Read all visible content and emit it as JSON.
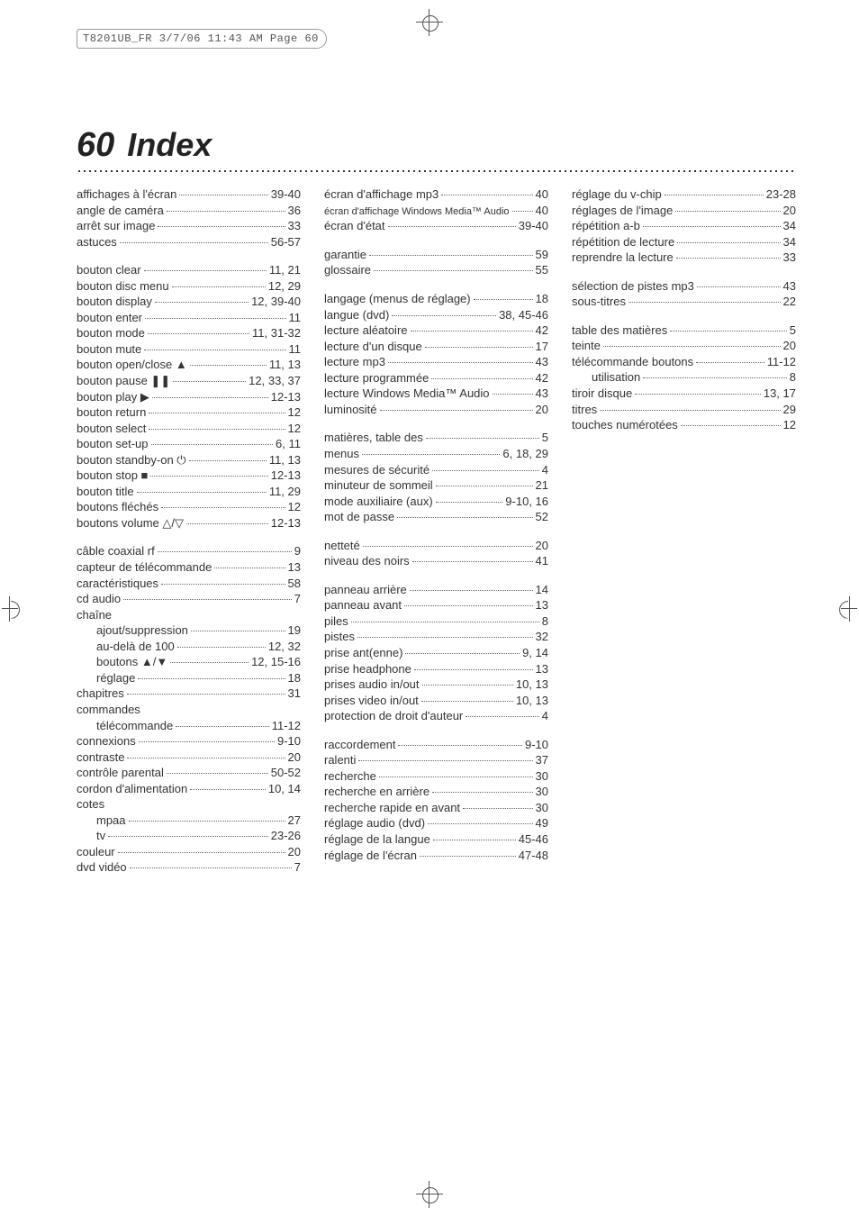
{
  "header_tag": "T8201UB_FR  3/7/06  11:43 AM  Page 60",
  "page_number": "60",
  "page_title": "Index",
  "columns": [
    [
      [
        {
          "t": "affichages à l'écran",
          "p": "39-40"
        },
        {
          "t": "angle de caméra",
          "p": "36"
        },
        {
          "t": "arrêt sur image",
          "p": "33"
        },
        {
          "t": "astuces",
          "p": "56-57"
        }
      ],
      [
        {
          "t": "bouton clear",
          "p": "11, 21"
        },
        {
          "t": "bouton disc menu",
          "p": "12, 29"
        },
        {
          "t": "bouton display",
          "p": "12, 39-40"
        },
        {
          "t": "bouton enter",
          "p": "11"
        },
        {
          "t": "bouton mode",
          "p": "11, 31-32"
        },
        {
          "t": "bouton mute",
          "p": "11"
        },
        {
          "t": "bouton open/close ▲",
          "p": "11, 13"
        },
        {
          "t": "bouton pause ❚❚",
          "p": "12, 33, 37"
        },
        {
          "t": "bouton play ▶",
          "p": "12-13"
        },
        {
          "t": "bouton return",
          "p": "12"
        },
        {
          "t": "bouton select",
          "p": "12"
        },
        {
          "t": "bouton set-up",
          "p": "6, 11"
        },
        {
          "t": "bouton standby-on ⏻",
          "p": "11, 13"
        },
        {
          "t": "bouton stop ■",
          "p": "12-13"
        },
        {
          "t": "bouton title",
          "p": "11, 29"
        },
        {
          "t": "boutons fléchés",
          "p": "12"
        },
        {
          "t": "boutons volume △/▽",
          "p": "12-13"
        }
      ],
      [
        {
          "t": "câble coaxial rf",
          "p": "9"
        },
        {
          "t": "capteur de télécommande",
          "p": "13"
        },
        {
          "t": "caractéristiques",
          "p": "58"
        },
        {
          "t": "cd audio",
          "p": "7"
        },
        {
          "t": "chaîne",
          "naked": true
        },
        {
          "t": "ajout/suppression",
          "p": "19",
          "indent": true
        },
        {
          "t": "au-delà de 100",
          "p": "12, 32",
          "indent": true
        },
        {
          "t": "boutons ▲/▼",
          "p": "12, 15-16",
          "indent": true
        },
        {
          "t": "réglage",
          "p": "18",
          "indent": true
        },
        {
          "t": "chapitres",
          "p": "31"
        },
        {
          "t": "commandes",
          "naked": true
        },
        {
          "t": "télécommande",
          "p": "11-12",
          "indent": true
        },
        {
          "t": "connexions",
          "p": "9-10"
        },
        {
          "t": "contraste",
          "p": "20"
        },
        {
          "t": "contrôle parental",
          "p": "50-52"
        },
        {
          "t": "cordon d'alimentation",
          "p": "10, 14"
        },
        {
          "t": "cotes",
          "naked": true
        },
        {
          "t": "mpaa",
          "p": "27",
          "indent": true
        },
        {
          "t": "tv",
          "p": "23-26",
          "indent": true
        },
        {
          "t": "couleur",
          "p": "20"
        },
        {
          "t": "dvd vidéo",
          "p": "7"
        }
      ]
    ],
    [
      [
        {
          "t": "écran d'affichage mp3",
          "p": "40"
        },
        {
          "t": "écran d'affichage Windows Media™ Audio",
          "p": "40",
          "small": true
        },
        {
          "t": "écran d'état",
          "p": "39-40"
        }
      ],
      [
        {
          "t": "garantie",
          "p": "59"
        },
        {
          "t": "glossaire",
          "p": "55"
        }
      ],
      [
        {
          "t": "langage (menus de réglage)",
          "p": "18"
        },
        {
          "t": "langue (dvd)",
          "p": "38, 45-46"
        },
        {
          "t": "lecture aléatoire",
          "p": "42"
        },
        {
          "t": "lecture d'un disque",
          "p": "17"
        },
        {
          "t": "lecture mp3",
          "p": "43"
        },
        {
          "t": "lecture programmée",
          "p": "42"
        },
        {
          "t": "lecture Windows Media™ Audio",
          "p": "43"
        },
        {
          "t": "luminosité",
          "p": "20"
        }
      ],
      [
        {
          "t": "matières, table des",
          "p": "5"
        },
        {
          "t": "menus",
          "p": "6, 18, 29"
        },
        {
          "t": "mesures de sécurité",
          "p": "4"
        },
        {
          "t": "minuteur de sommeil",
          "p": "21"
        },
        {
          "t": "mode auxiliaire (aux)",
          "p": "9-10, 16"
        },
        {
          "t": "mot de passe",
          "p": "52"
        }
      ],
      [
        {
          "t": "netteté",
          "p": "20"
        },
        {
          "t": "niveau des noirs",
          "p": "41"
        }
      ],
      [
        {
          "t": "panneau arrière",
          "p": "14"
        },
        {
          "t": "panneau avant",
          "p": "13"
        },
        {
          "t": "piles",
          "p": "8"
        },
        {
          "t": "pistes",
          "p": "32"
        },
        {
          "t": "prise ant(enne)",
          "p": "9, 14"
        },
        {
          "t": "prise headphone",
          "p": "13"
        },
        {
          "t": "prises audio in/out",
          "p": "10, 13"
        },
        {
          "t": "prises video in/out",
          "p": "10, 13"
        },
        {
          "t": "protection de droit d'auteur",
          "p": "4"
        }
      ],
      [
        {
          "t": "raccordement",
          "p": "9-10"
        },
        {
          "t": "ralenti",
          "p": "37"
        },
        {
          "t": "recherche",
          "p": "30"
        },
        {
          "t": "recherche en arrière",
          "p": "30"
        },
        {
          "t": "recherche rapide en avant",
          "p": "30"
        },
        {
          "t": "réglage audio (dvd)",
          "p": "49"
        },
        {
          "t": "réglage de la langue",
          "p": "45-46"
        },
        {
          "t": "réglage de l'écran",
          "p": "47-48"
        }
      ]
    ],
    [
      [
        {
          "t": "réglage du v-chip",
          "p": "23-28"
        },
        {
          "t": "réglages de l'image",
          "p": "20"
        },
        {
          "t": "répétition a-b",
          "p": "34"
        },
        {
          "t": "répétition de lecture",
          "p": "34"
        },
        {
          "t": "reprendre la lecture",
          "p": "33"
        }
      ],
      [
        {
          "t": "sélection de pistes mp3",
          "p": "43"
        },
        {
          "t": "sous-titres",
          "p": "22"
        }
      ],
      [
        {
          "t": "table des matières",
          "p": "5"
        },
        {
          "t": "teinte",
          "p": "20"
        },
        {
          "t": "télécommande boutons",
          "p": "11-12"
        },
        {
          "t": "utilisation",
          "p": "8",
          "indent": true
        },
        {
          "t": "tiroir disque",
          "p": "13, 17"
        },
        {
          "t": "titres",
          "p": "29"
        },
        {
          "t": "touches numérotées",
          "p": "12"
        }
      ]
    ]
  ]
}
